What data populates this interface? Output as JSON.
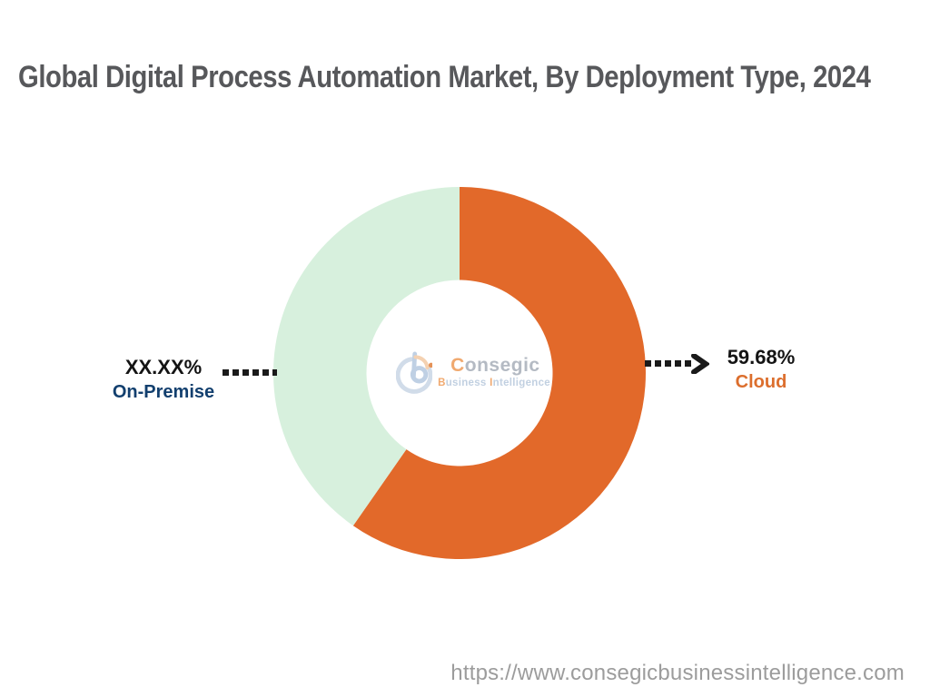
{
  "page": {
    "background": "#FFFFFF"
  },
  "title": {
    "text": "Global Digital Process Automation Market, By Deployment Type, 2024",
    "color": "#57585B"
  },
  "chart_data": {
    "type": "pie",
    "subtype": "donut",
    "title": "Global Digital Process Automation Market, By Deployment Type, 2024",
    "categories": [
      "Cloud",
      "On-Premise"
    ],
    "values": [
      59.68,
      40.32
    ],
    "value_labels": [
      "59.68%",
      "XX.XX%"
    ],
    "colors": [
      "#E2692A",
      "#D7F0DD"
    ],
    "start_angle_deg": 0,
    "direction": "clockwise",
    "inner_radius_ratio": 0.5,
    "legend_position": "callout-labels",
    "annotations": [
      {
        "side": "right",
        "value_text": "59.68%",
        "label": "Cloud",
        "label_color": "#DC6E2D",
        "leader_style": "dotted-arrow"
      },
      {
        "side": "left",
        "value_text": "XX.XX%",
        "label": "On-Premise",
        "label_color": "#123F6E",
        "leader_style": "dotted"
      }
    ]
  },
  "callouts": {
    "left": {
      "value": "XX.XX%",
      "label": "On-Premise",
      "value_color": "#141414",
      "label_color": "#123F6E"
    },
    "right": {
      "value": "59.68%",
      "label": "Cloud",
      "value_color": "#141414",
      "label_color": "#DC6E2D"
    }
  },
  "logo": {
    "name": "Consegic Business Intelligence watermark",
    "line1_first": "C",
    "line1_rest": "onsegic",
    "line2_b": "B",
    "line2_usiness": "usiness",
    "line2_i": "I",
    "line2_rest": "ntelligence",
    "accent_color": "#EE9B57",
    "mark_blue": "#B5C8E0",
    "ring_blue": "#C9D6E6"
  },
  "footer": {
    "url": "https://www.consegicbusinessintelligence.com",
    "color": "#9C9C9C"
  }
}
